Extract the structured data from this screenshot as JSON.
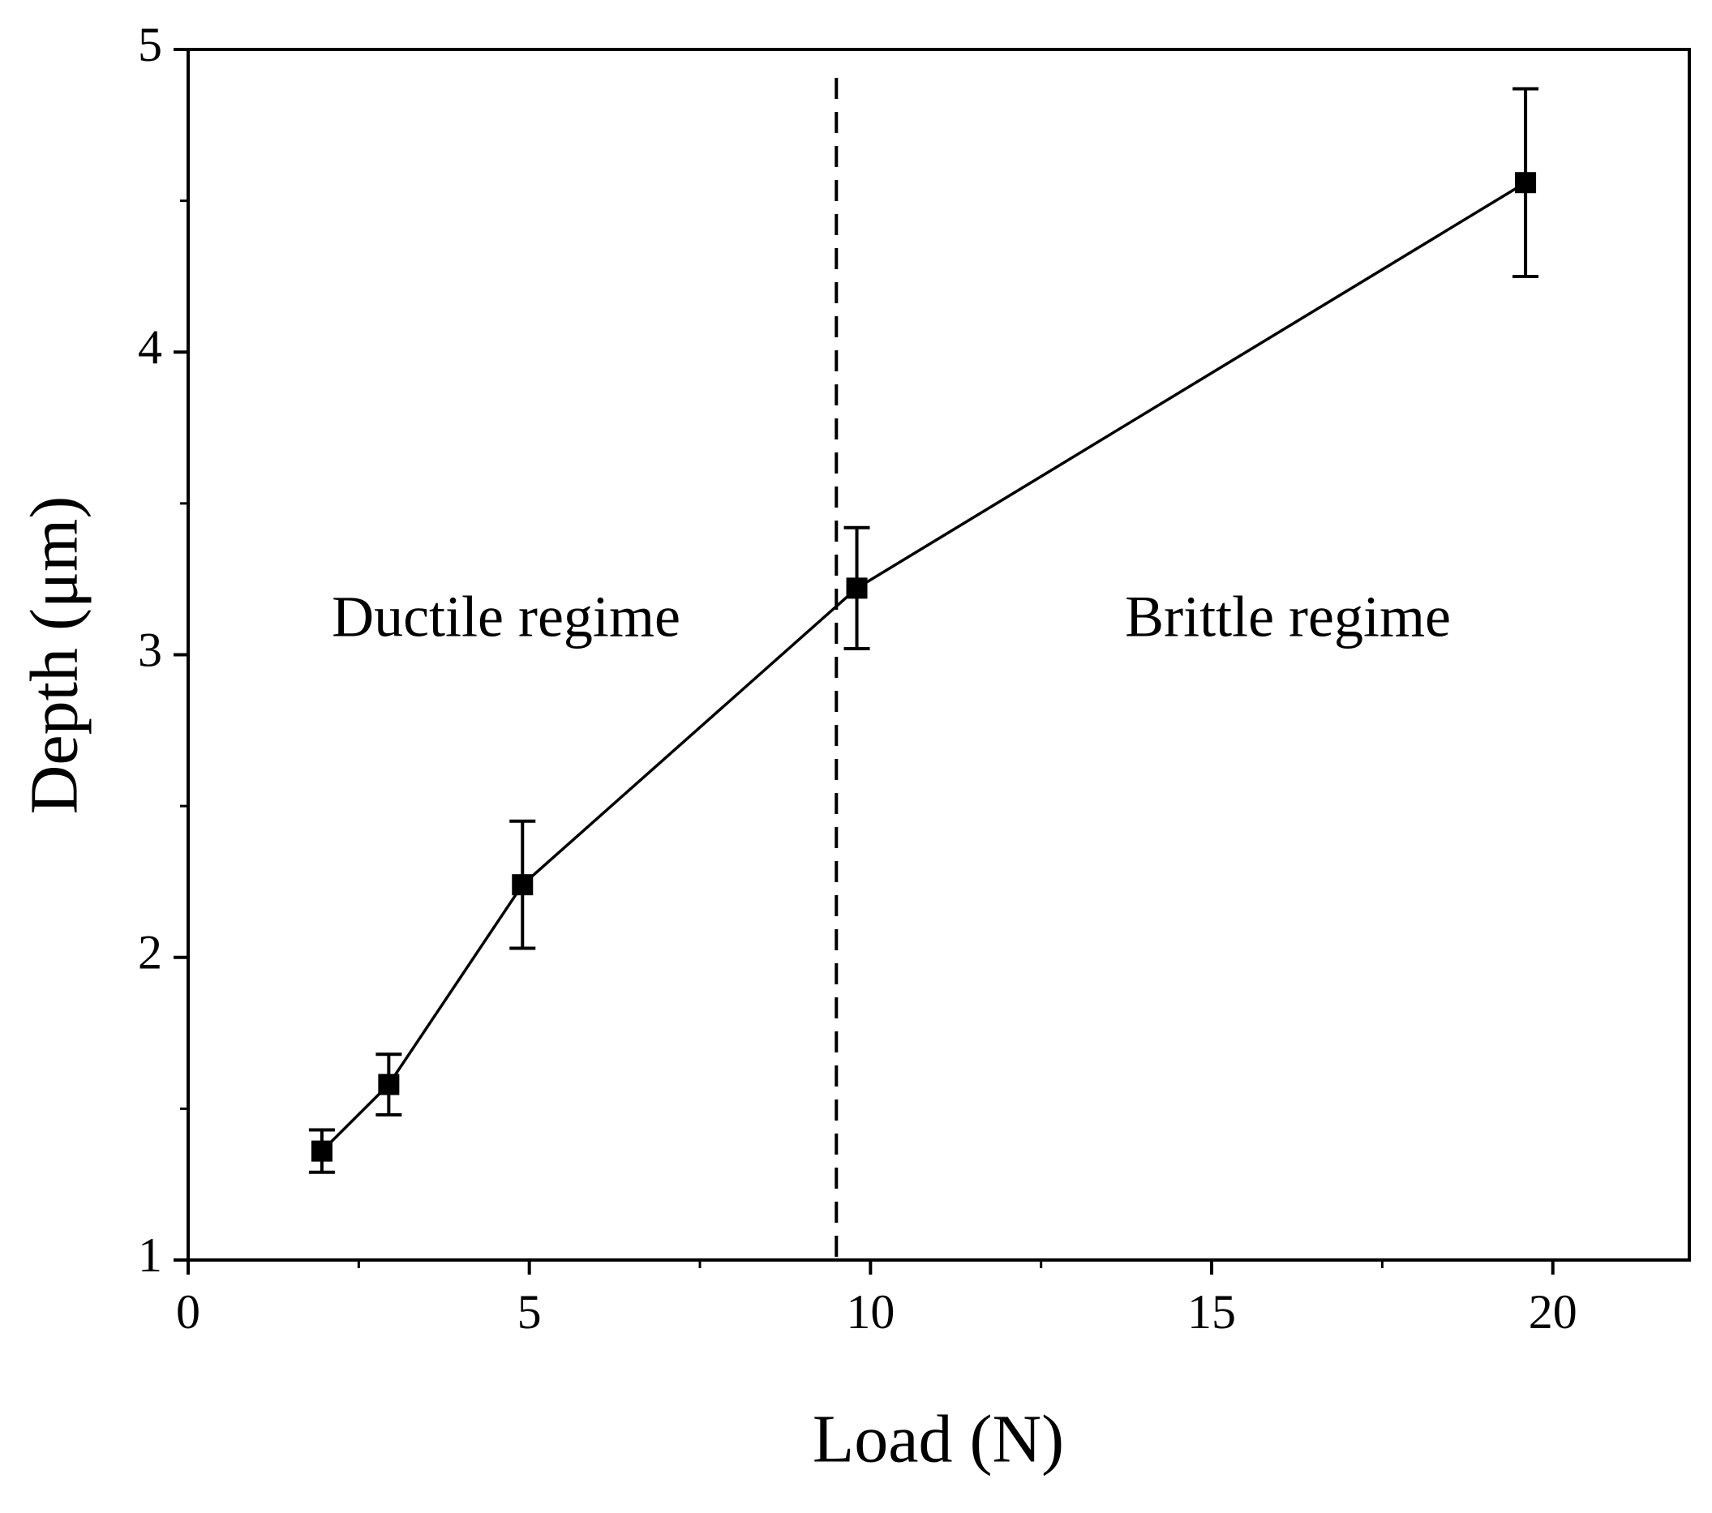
{
  "chart_data": {
    "type": "line",
    "x_label": "Load (N)",
    "y_label": "Depth (μm)",
    "annotations": [
      "Ductile regime",
      "Brittle regime"
    ],
    "x": [
      1.96,
      2.94,
      4.9,
      9.8,
      19.6
    ],
    "series": [
      {
        "color": "#000000",
        "values": [
          1.36,
          1.58,
          2.24,
          3.22,
          4.56
        ],
        "errors": [
          0.07,
          0.1,
          0.21,
          0.2,
          0.31
        ]
      }
    ],
    "threshold_x": 9.5,
    "xlim": [
      0,
      22
    ],
    "ylim": [
      1,
      5
    ],
    "xticks": [
      0,
      5,
      10,
      15,
      20
    ],
    "yticks": [
      1,
      2,
      3,
      4,
      5
    ],
    "grid": false
  }
}
